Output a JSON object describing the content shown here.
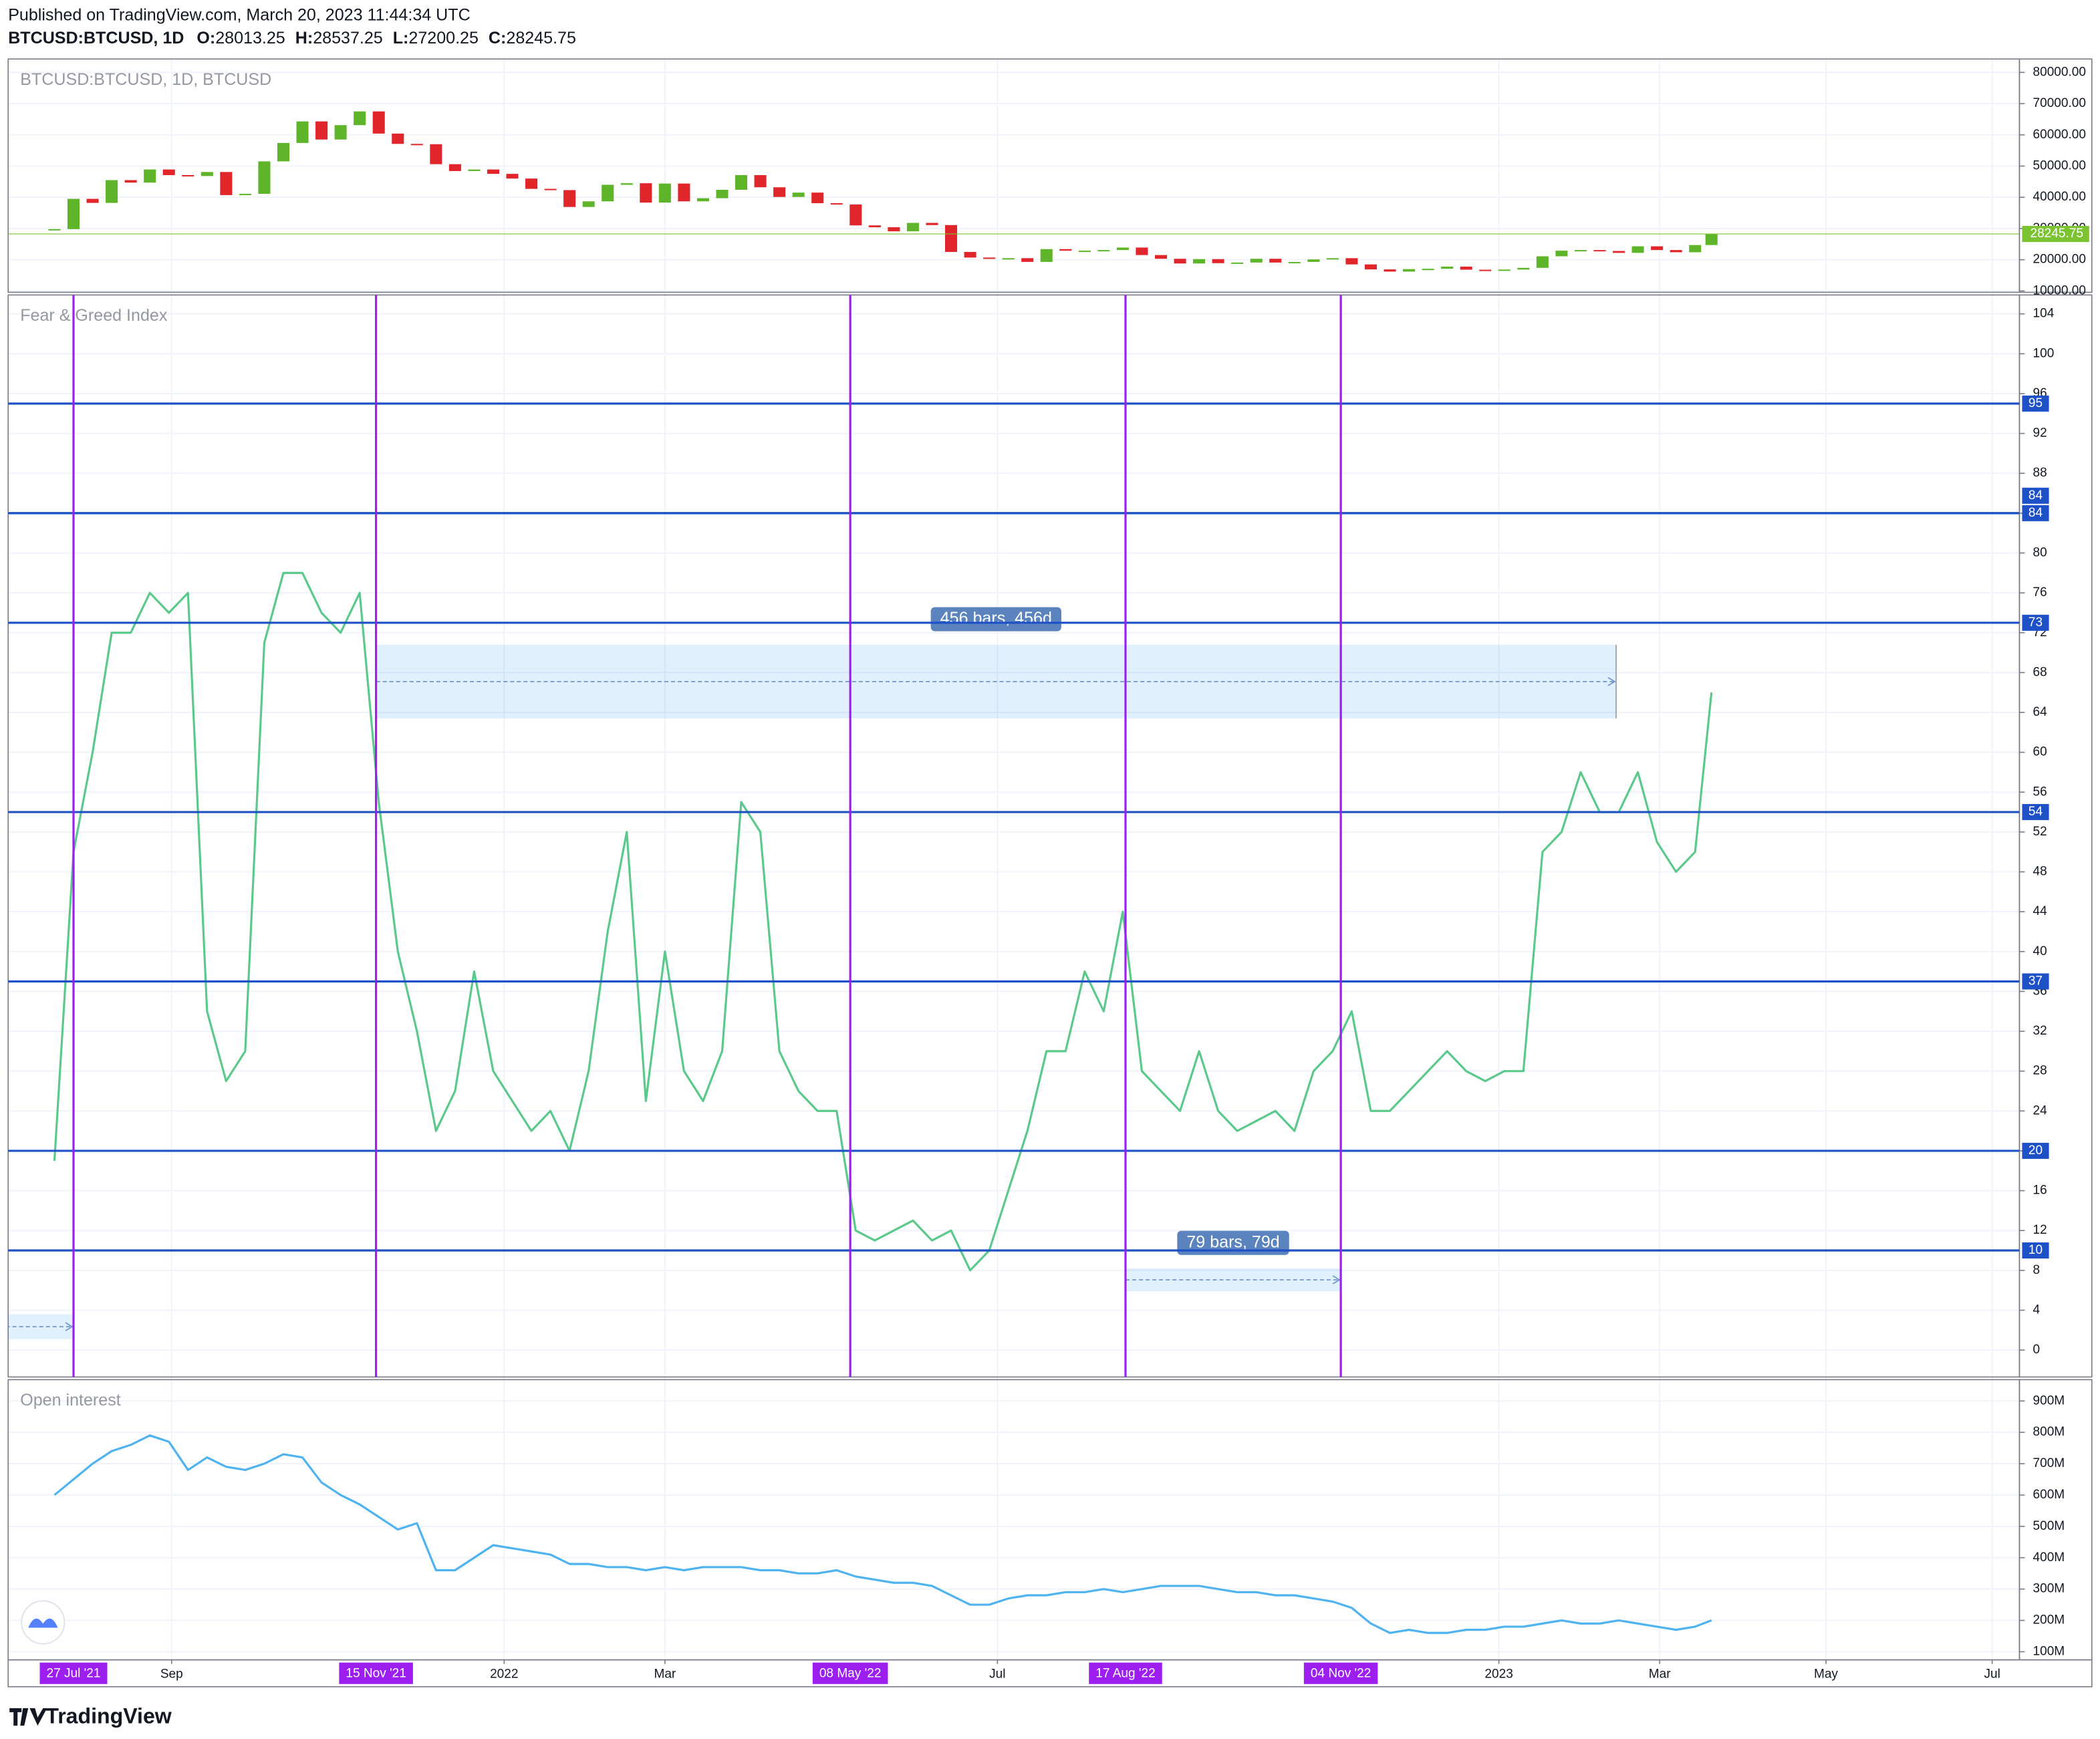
{
  "header": {
    "published": "Published on TradingView.com, March 20, 2023 11:44:34 UTC",
    "symbol": "BTCUSD:BTCUSD, 1D",
    "ohlc": [
      {
        "label": "O:",
        "value": 28013.25
      },
      {
        "label": "H:",
        "value": 28537.25
      },
      {
        "label": "L:",
        "value": 27200.25
      },
      {
        "label": "C:",
        "value": 28245.75
      }
    ]
  },
  "footer": {
    "brand": "TradingView"
  },
  "chart_data": [
    {
      "type": "candlestick",
      "title": "BTCUSD:BTCUSD, 1D, BTCUSD",
      "colors": {
        "up": "#5fb52a",
        "down": "#e0262b",
        "last": "#7cc332"
      },
      "grid": true,
      "xlim": [
        "2021-07-04",
        "2023-07-11"
      ],
      "x": [
        "2021-07-20",
        "2021-07-27",
        "2021-08-03",
        "2021-08-10",
        "2021-08-17",
        "2021-08-24",
        "2021-08-31",
        "2021-09-07",
        "2021-09-14",
        "2021-09-21",
        "2021-09-28",
        "2021-10-05",
        "2021-10-12",
        "2021-10-19",
        "2021-10-26",
        "2021-11-02",
        "2021-11-09",
        "2021-11-16",
        "2021-11-23",
        "2021-11-30",
        "2021-12-07",
        "2021-12-14",
        "2021-12-21",
        "2021-12-28",
        "2022-01-04",
        "2022-01-11",
        "2022-01-18",
        "2022-01-25",
        "2022-02-01",
        "2022-02-08",
        "2022-02-15",
        "2022-02-22",
        "2022-03-01",
        "2022-03-08",
        "2022-03-15",
        "2022-03-22",
        "2022-03-29",
        "2022-04-05",
        "2022-04-12",
        "2022-04-19",
        "2022-04-26",
        "2022-05-03",
        "2022-05-10",
        "2022-05-17",
        "2022-05-24",
        "2022-05-31",
        "2022-06-07",
        "2022-06-14",
        "2022-06-21",
        "2022-06-28",
        "2022-07-05",
        "2022-07-12",
        "2022-07-19",
        "2022-07-26",
        "2022-08-02",
        "2022-08-09",
        "2022-08-16",
        "2022-08-23",
        "2022-08-30",
        "2022-09-06",
        "2022-09-13",
        "2022-09-20",
        "2022-09-27",
        "2022-10-04",
        "2022-10-11",
        "2022-10-18",
        "2022-10-25",
        "2022-11-01",
        "2022-11-08",
        "2022-11-15",
        "2022-11-22",
        "2022-11-29",
        "2022-12-06",
        "2022-12-13",
        "2022-12-20",
        "2022-12-27",
        "2023-01-03",
        "2023-01-10",
        "2023-01-17",
        "2023-01-24",
        "2023-01-31",
        "2023-02-07",
        "2023-02-14",
        "2023-02-21",
        "2023-02-28",
        "2023-03-07",
        "2023-03-14",
        "2023-03-20"
      ],
      "values": [
        29800,
        39500,
        38200,
        45500,
        44700,
        48900,
        47100,
        46800,
        48100,
        40700,
        41100,
        51500,
        57400,
        64300,
        58500,
        63100,
        67500,
        60400,
        57100,
        57000,
        50600,
        48400,
        48900,
        47500,
        46000,
        42700,
        42300,
        36900,
        38700,
        44000,
        44500,
        38300,
        44400,
        38700,
        39700,
        42400,
        47100,
        43200,
        40100,
        41500,
        38100,
        37700,
        31000,
        30400,
        29100,
        31800,
        31100,
        22500,
        20700,
        20300,
        20500,
        19300,
        23400,
        22900,
        22900,
        23100,
        23900,
        21500,
        20300,
        18800,
        20200,
        18900,
        19100,
        20300,
        19100,
        19300,
        20100,
        20500,
        18500,
        16900,
        16200,
        17000,
        17100,
        17800,
        16800,
        16700,
        16850,
        17400,
        21100,
        22900,
        23100,
        22800,
        22200,
        24300,
        23100,
        22400,
        24700,
        28245.75
      ],
      "ylim": [
        9570,
        84290
      ],
      "yticks": [
        {
          "value": 10000,
          "label": "10000.00"
        },
        {
          "value": 20000,
          "label": "20000.00"
        },
        {
          "value": 30000,
          "label": "30000.00"
        },
        {
          "value": 40000,
          "label": "40000.00"
        },
        {
          "value": 50000,
          "label": "50000.00"
        },
        {
          "value": 60000,
          "label": "60000.00"
        },
        {
          "value": 70000,
          "label": "70000.00"
        },
        {
          "value": 80000,
          "label": "80000.00"
        }
      ]
    },
    {
      "type": "line",
      "title": "Fear & Greed Index",
      "color": "#5cc98c",
      "grid": true,
      "xlim": [
        "2021-07-04",
        "2023-07-11"
      ],
      "x": [
        "2021-07-20",
        "2021-07-27",
        "2021-08-03",
        "2021-08-10",
        "2021-08-17",
        "2021-08-24",
        "2021-08-31",
        "2021-09-07",
        "2021-09-14",
        "2021-09-21",
        "2021-09-28",
        "2021-10-05",
        "2021-10-12",
        "2021-10-19",
        "2021-10-26",
        "2021-11-02",
        "2021-11-09",
        "2021-11-16",
        "2021-11-23",
        "2021-11-30",
        "2021-12-07",
        "2021-12-14",
        "2021-12-21",
        "2021-12-28",
        "2022-01-04",
        "2022-01-11",
        "2022-01-18",
        "2022-01-25",
        "2022-02-01",
        "2022-02-08",
        "2022-02-15",
        "2022-02-22",
        "2022-03-01",
        "2022-03-08",
        "2022-03-15",
        "2022-03-22",
        "2022-03-29",
        "2022-04-05",
        "2022-04-12",
        "2022-04-19",
        "2022-04-26",
        "2022-05-03",
        "2022-05-10",
        "2022-05-17",
        "2022-05-24",
        "2022-05-31",
        "2022-06-07",
        "2022-06-14",
        "2022-06-21",
        "2022-06-28",
        "2022-07-05",
        "2022-07-12",
        "2022-07-19",
        "2022-07-26",
        "2022-08-02",
        "2022-08-09",
        "2022-08-16",
        "2022-08-23",
        "2022-08-30",
        "2022-09-06",
        "2022-09-13",
        "2022-09-20",
        "2022-09-27",
        "2022-10-04",
        "2022-10-11",
        "2022-10-18",
        "2022-10-25",
        "2022-11-01",
        "2022-11-08",
        "2022-11-15",
        "2022-11-22",
        "2022-11-29",
        "2022-12-06",
        "2022-12-13",
        "2022-12-20",
        "2022-12-27",
        "2023-01-03",
        "2023-01-10",
        "2023-01-17",
        "2023-01-24",
        "2023-01-31",
        "2023-02-07",
        "2023-02-14",
        "2023-02-21",
        "2023-02-28",
        "2023-03-07",
        "2023-03-14",
        "2023-03-20"
      ],
      "values": [
        19,
        50,
        60,
        72,
        72,
        76,
        74,
        76,
        34,
        27,
        30,
        71,
        78,
        78,
        74,
        72,
        76,
        55,
        40,
        32,
        22,
        26,
        38,
        28,
        25,
        22,
        24,
        20,
        28,
        42,
        52,
        25,
        40,
        28,
        25,
        30,
        55,
        52,
        30,
        26,
        24,
        24,
        12,
        11,
        12,
        13,
        11,
        12,
        8,
        10,
        16,
        22,
        30,
        30,
        38,
        34,
        44,
        28,
        26,
        24,
        30,
        24,
        22,
        23,
        24,
        22,
        28,
        30,
        34,
        24,
        24,
        26,
        28,
        30,
        28,
        27,
        28,
        28,
        50,
        52,
        58,
        54,
        54,
        58,
        51,
        48,
        50,
        66
      ],
      "ylim": [
        -2.7,
        105.9
      ],
      "yticks": [
        0,
        4,
        8,
        12,
        16,
        20,
        24,
        28,
        32,
        36,
        40,
        44,
        48,
        52,
        56,
        60,
        64,
        68,
        72,
        76,
        80,
        84,
        88,
        92,
        96,
        100,
        104
      ],
      "hlines": [
        95,
        84,
        84,
        73,
        54,
        37,
        20,
        10
      ],
      "hline_color": "#1e50c8",
      "vlines": [
        {
          "value": "2021-07-27",
          "label": "27 Jul '21"
        },
        {
          "value": "2021-11-15",
          "label": "15 Nov '21"
        },
        {
          "value": "2022-05-08",
          "label": "08 May '22"
        },
        {
          "value": "2022-08-17",
          "label": "17 Aug '22"
        },
        {
          "value": "2022-11-04",
          "label": "04 Nov '22"
        }
      ],
      "vline_color": "#9c1ff0",
      "measures": [
        {
          "label": "456 bars, 456d",
          "from": "2021-11-15",
          "to": "2023-02-13",
          "top": 70.8,
          "bottom": 63.4
        },
        {
          "label": "79 bars, 79d",
          "from": "2022-08-17",
          "to": "2022-11-04",
          "top": 8.2,
          "bottom": 5.9
        },
        {
          "from": "2021-05-09",
          "to": "2021-07-27",
          "top": 3.6,
          "bottom": 1.1
        }
      ]
    },
    {
      "type": "line",
      "title": "Open interest",
      "color": "#4fb3ef",
      "grid": true,
      "xlim": [
        "2021-07-04",
        "2023-07-11"
      ],
      "x": [
        "2021-07-20",
        "2021-07-27",
        "2021-08-03",
        "2021-08-10",
        "2021-08-17",
        "2021-08-24",
        "2021-08-31",
        "2021-09-07",
        "2021-09-14",
        "2021-09-21",
        "2021-09-28",
        "2021-10-05",
        "2021-10-12",
        "2021-10-19",
        "2021-10-26",
        "2021-11-02",
        "2021-11-09",
        "2021-11-16",
        "2021-11-23",
        "2021-11-30",
        "2021-12-07",
        "2021-12-14",
        "2021-12-21",
        "2021-12-28",
        "2022-01-04",
        "2022-01-11",
        "2022-01-18",
        "2022-01-25",
        "2022-02-01",
        "2022-02-08",
        "2022-02-15",
        "2022-02-22",
        "2022-03-01",
        "2022-03-08",
        "2022-03-15",
        "2022-03-22",
        "2022-03-29",
        "2022-04-05",
        "2022-04-12",
        "2022-04-19",
        "2022-04-26",
        "2022-05-03",
        "2022-05-10",
        "2022-05-17",
        "2022-05-24",
        "2022-05-31",
        "2022-06-07",
        "2022-06-14",
        "2022-06-21",
        "2022-06-28",
        "2022-07-05",
        "2022-07-12",
        "2022-07-19",
        "2022-07-26",
        "2022-08-02",
        "2022-08-09",
        "2022-08-16",
        "2022-08-23",
        "2022-08-30",
        "2022-09-06",
        "2022-09-13",
        "2022-09-20",
        "2022-09-27",
        "2022-10-04",
        "2022-10-11",
        "2022-10-18",
        "2022-10-25",
        "2022-11-01",
        "2022-11-08",
        "2022-11-15",
        "2022-11-22",
        "2022-11-29",
        "2022-12-06",
        "2022-12-13",
        "2022-12-20",
        "2022-12-27",
        "2023-01-03",
        "2023-01-10",
        "2023-01-17",
        "2023-01-24",
        "2023-01-31",
        "2023-02-07",
        "2023-02-14",
        "2023-02-21",
        "2023-02-28",
        "2023-03-07",
        "2023-03-14",
        "2023-03-20"
      ],
      "values": [
        600000000,
        650000000,
        700000000,
        740000000,
        760000000,
        790000000,
        770000000,
        680000000,
        720000000,
        690000000,
        680000000,
        700000000,
        730000000,
        720000000,
        640000000,
        600000000,
        570000000,
        530000000,
        490000000,
        510000000,
        360000000,
        360000000,
        400000000,
        440000000,
        430000000,
        420000000,
        410000000,
        380000000,
        380000000,
        370000000,
        370000000,
        360000000,
        370000000,
        360000000,
        370000000,
        370000000,
        370000000,
        360000000,
        360000000,
        350000000,
        350000000,
        360000000,
        340000000,
        330000000,
        320000000,
        320000000,
        310000000,
        280000000,
        250000000,
        250000000,
        270000000,
        280000000,
        280000000,
        290000000,
        290000000,
        300000000,
        290000000,
        300000000,
        310000000,
        310000000,
        310000000,
        300000000,
        290000000,
        290000000,
        280000000,
        280000000,
        270000000,
        260000000,
        240000000,
        190000000,
        160000000,
        170000000,
        160000000,
        160000000,
        170000000,
        170000000,
        180000000,
        180000000,
        190000000,
        200000000,
        190000000,
        190000000,
        200000000,
        190000000,
        180000000,
        170000000,
        180000000,
        200000000
      ],
      "ylim": [
        74000000,
        968000000
      ],
      "yticks": [
        {
          "value": 100000000,
          "label": "100M"
        },
        {
          "value": 200000000,
          "label": "200M"
        },
        {
          "value": 300000000,
          "label": "300M"
        },
        {
          "value": 400000000,
          "label": "400M"
        },
        {
          "value": 500000000,
          "label": "500M"
        },
        {
          "value": 600000000,
          "label": "600M"
        },
        {
          "value": 700000000,
          "label": "700M"
        },
        {
          "value": 800000000,
          "label": "800M"
        },
        {
          "value": 900000000,
          "label": "900M"
        }
      ],
      "xticks": [
        {
          "value": "2021-09-01",
          "label": "Sep"
        },
        {
          "value": "2022-01-01",
          "label": "2022"
        },
        {
          "value": "2022-03-01",
          "label": "Mar"
        },
        {
          "value": "2022-07-01",
          "label": "Jul"
        },
        {
          "value": "2023-01-01",
          "label": "2023"
        },
        {
          "value": "2023-03-01",
          "label": "Mar"
        },
        {
          "value": "2023-05-01",
          "label": "May"
        },
        {
          "value": "2023-07-01",
          "label": "Jul"
        }
      ]
    }
  ]
}
